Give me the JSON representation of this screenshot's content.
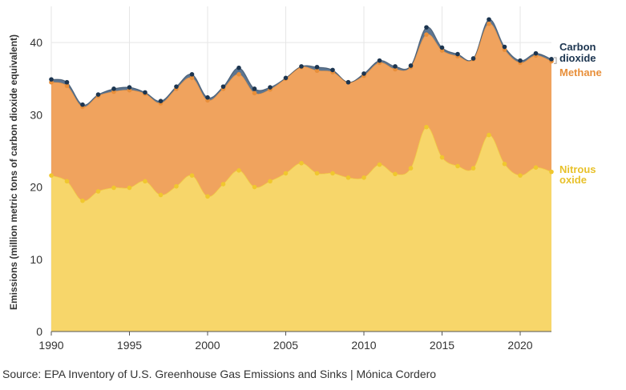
{
  "chart_data": {
    "type": "area",
    "ylabel": "Emissions (million metric tons of carbon dioxide equivalent)",
    "ylim": [
      0,
      45
    ],
    "xlim": [
      1990,
      2022
    ],
    "x_ticks": [
      1990,
      1995,
      2000,
      2005,
      2010,
      2015,
      2020
    ],
    "y_ticks": [
      0,
      10,
      20,
      30,
      40
    ],
    "x": [
      1990,
      1991,
      1992,
      1993,
      1994,
      1995,
      1996,
      1997,
      1998,
      1999,
      2000,
      2001,
      2002,
      2003,
      2004,
      2005,
      2006,
      2007,
      2008,
      2009,
      2010,
      2011,
      2012,
      2013,
      2014,
      2015,
      2016,
      2017,
      2018,
      2019,
      2020,
      2021,
      2022
    ],
    "series": [
      {
        "name": "Nitrous oxide",
        "label_lines": [
          "Nitrous",
          "oxide"
        ],
        "color": "#f7d66a",
        "point_color": "#f0c72e",
        "cumulative": [
          21.6,
          20.8,
          18.1,
          19.4,
          19.9,
          19.9,
          20.8,
          18.9,
          20.1,
          21.6,
          18.7,
          20.4,
          22.3,
          20.0,
          20.8,
          21.9,
          23.3,
          21.9,
          21.9,
          21.3,
          21.3,
          23.1,
          21.8,
          22.6,
          28.3,
          24.1,
          22.9,
          22.6,
          27.2,
          23.2,
          21.6,
          22.7,
          22.1
        ]
      },
      {
        "name": "Methane",
        "label_lines": [
          "Methane"
        ],
        "color": "#f0a35e",
        "point_color": "#e88f3a",
        "cumulative": [
          34.5,
          34.0,
          31.1,
          32.6,
          33.2,
          33.4,
          32.9,
          31.6,
          33.6,
          35.1,
          32.0,
          33.6,
          35.6,
          33.0,
          33.5,
          35.0,
          36.6,
          36.1,
          35.9,
          34.5,
          35.4,
          37.2,
          36.3,
          36.6,
          41.1,
          38.9,
          38.1,
          37.7,
          42.6,
          39.0,
          37.2,
          38.2,
          37.4
        ]
      },
      {
        "name": "Carbon dioxide",
        "label_lines": [
          "Carbon",
          "dioxide"
        ],
        "color": "#5d7590",
        "point_color": "#1c3550",
        "cumulative": [
          34.9,
          34.5,
          31.4,
          32.8,
          33.6,
          33.8,
          33.1,
          31.9,
          33.9,
          35.6,
          32.4,
          33.9,
          36.5,
          33.6,
          33.8,
          35.1,
          36.7,
          36.6,
          36.2,
          34.5,
          35.7,
          37.5,
          36.7,
          36.8,
          42.1,
          39.3,
          38.4,
          37.8,
          43.2,
          39.4,
          37.5,
          38.5,
          37.7
        ]
      }
    ],
    "grid": true
  },
  "source": "Source: EPA Inventory of U.S. Greenhouse Gas Emissions and Sinks | Mónica Cordero"
}
